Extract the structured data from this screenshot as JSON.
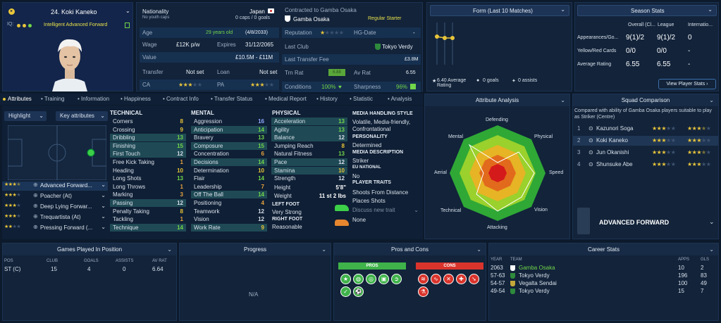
{
  "profile": {
    "iq_label": "IQ:",
    "name": "24. Koki Kaneko",
    "role": "Intelligent Advanced Forward"
  },
  "info": {
    "nationality_label": "Nationality",
    "nationality": "Japan",
    "youth_caps": "No youth caps",
    "caps": "0 caps / 0 goals",
    "age_label": "Age",
    "age": "29 years old",
    "dob": "(4/8/2033)",
    "wage_label": "Wage",
    "wage": "£12K p/w",
    "expires_label": "Expires",
    "expires": "31/12/2065",
    "value_label": "Value",
    "value": "£10.5M - £11M",
    "transfer_label": "Transfer",
    "transfer": "Not set",
    "loan_label": "Loan",
    "loan": "Not set",
    "ca_label": "CA",
    "pa_label": "PA",
    "contract_to": "Contracted to Gamba Osaka",
    "club": "Gamba Osaka",
    "squad_status": "Regular Starter",
    "reputation_label": "Reputation",
    "hg_label": "HG-Date",
    "hg_value": "-",
    "last_club_label": "Last Club",
    "last_club": "Tokyo Verdy",
    "fee_label": "Last Transfer Fee",
    "fee": "£3.8M",
    "trn_label": "Trn Rat",
    "trn_value": "6.88",
    "avrat_label": "Av Rat",
    "avrat": "6.55",
    "conditions_label": "Conditions",
    "conditions": "100%",
    "sharpness_label": "Sharpness",
    "sharpness": "96%"
  },
  "form": {
    "title": "Form (Last 10 Matches)",
    "avg": "6.40 Average Rating",
    "goals": "0 goals",
    "assists": "0 assists"
  },
  "season": {
    "title": "Season Stats",
    "cols": [
      "Overall (Cl...",
      "League",
      "Internatio..."
    ],
    "rows": [
      {
        "label": "Appearances/Go...",
        "v": [
          "9(1)/2",
          "9(1)/2",
          "0"
        ]
      },
      {
        "label": "Yellow/Red Cards",
        "v": [
          "0/0",
          "0/0",
          "-"
        ]
      },
      {
        "label": "Average Rating",
        "v": [
          "6.55",
          "6.55",
          "-"
        ]
      }
    ],
    "button": "View Player Stats"
  },
  "tabs": [
    "Attributes",
    "Training",
    "Information",
    "Happiness",
    "Contract Info",
    "Transfer Status",
    "Medical Report",
    "History",
    "Statistic",
    "Analysis"
  ],
  "pitch": {
    "highlight": "Highlight",
    "key_attr": "Key attributes"
  },
  "roles": [
    "Advanced Forward...",
    "Poacher (At)",
    "Deep Lying Forwar...",
    "Trequartista (At)",
    "Pressing Forward (..."
  ],
  "technical": {
    "title": "TECHNICAL",
    "items": [
      [
        "Corners",
        "8"
      ],
      [
        "Crossing",
        "9"
      ],
      [
        "Dribbling",
        "13"
      ],
      [
        "Finishing",
        "15"
      ],
      [
        "First Touch",
        "12"
      ],
      [
        "Free Kick Taking",
        "1"
      ],
      [
        "Heading",
        "10"
      ],
      [
        "Long Shots",
        "13"
      ],
      [
        "Long Throws",
        "1"
      ],
      [
        "Marking",
        "3"
      ],
      [
        "Passing",
        "12"
      ],
      [
        "Penalty Taking",
        "8"
      ],
      [
        "Tackling",
        "1"
      ],
      [
        "Technique",
        "14"
      ]
    ]
  },
  "mental": {
    "title": "MENTAL",
    "items": [
      [
        "Aggression",
        "16"
      ],
      [
        "Anticipation",
        "14"
      ],
      [
        "Bravery",
        "13"
      ],
      [
        "Composure",
        "15"
      ],
      [
        "Concentration",
        "6"
      ],
      [
        "Decisions",
        "14"
      ],
      [
        "Determination",
        "10"
      ],
      [
        "Flair",
        "14"
      ],
      [
        "Leadership",
        "7"
      ],
      [
        "Off The Ball",
        "14"
      ],
      [
        "Positioning",
        "4"
      ],
      [
        "Teamwork",
        "12"
      ],
      [
        "Vision",
        "12"
      ],
      [
        "Work Rate",
        "9"
      ]
    ]
  },
  "physical": {
    "title": "PHYSICAL",
    "items": [
      [
        "Acceleration",
        "13"
      ],
      [
        "Agility",
        "13"
      ],
      [
        "Balance",
        "12"
      ],
      [
        "Jumping Reach",
        "8"
      ],
      [
        "Natural Fitness",
        "13"
      ],
      [
        "Pace",
        "12"
      ],
      [
        "Stamina",
        "10"
      ],
      [
        "Strength",
        "12"
      ]
    ],
    "height_label": "Height",
    "height": "5'8\"",
    "weight_label": "Weight",
    "weight": "11 st 2 lbs",
    "left_foot_label": "LEFT FOOT",
    "left_foot": "Very Strong",
    "right_foot_label": "RIGHT FOOT",
    "right_foot": "Reasonable"
  },
  "media": {
    "mh_title": "MEDIA HANDLING STYLE",
    "mh": "Volatile, Media-friendly, Confrontational",
    "pers_title": "PERSONALITY",
    "pers": "Determined",
    "md_title": "MEDIA DESCRIPTION",
    "md": "Striker",
    "eu_title": "EU NATIONAL",
    "eu": "No",
    "traits_title": "PLAYER TRAITS",
    "traits": [
      "Shoots From Distance",
      "Places Shots"
    ],
    "discuss": "Discuss new trait",
    "none": "None"
  },
  "analysis": {
    "title": "Attribute Analysis",
    "axes": [
      "Defending",
      "Physical",
      "Speed",
      "Vision",
      "Attacking",
      "Technical",
      "Aerial",
      "Mental"
    ]
  },
  "squad": {
    "title": "Squad Comparison",
    "desc": "Compared with ability of Gamba Osaka players suitable to play as Striker (Centre)",
    "players": [
      [
        "1",
        "Kazunori Soga"
      ],
      [
        "2",
        "Koki Kaneko"
      ],
      [
        "3",
        "Jun Okanishi"
      ],
      [
        "4",
        "Shunsuke Abe"
      ]
    ],
    "role": "ADVANCED FORWARD"
  },
  "games": {
    "title": "Games Played In Position",
    "cols": [
      "POS",
      "CLUB",
      "GOALS",
      "ASSISTS",
      "AV RAT"
    ],
    "row": [
      "ST (C)",
      "15",
      "4",
      "0",
      "6.64"
    ]
  },
  "progress": {
    "title": "Progress",
    "na": "N/A"
  },
  "proscons": {
    "title": "Pros and Cons",
    "pros": "PROS",
    "cons": "CONS"
  },
  "career": {
    "title": "Career Stats",
    "cols": [
      "YEAR",
      "TEAM",
      "APPS",
      "GLS"
    ],
    "rows": [
      [
        "2063",
        "Gamba Osaka",
        "10",
        "2"
      ],
      [
        "57-63",
        "Tokyo Verdy",
        "196",
        "83"
      ],
      [
        "54-57",
        "Vegalta Sendai",
        "100",
        "49"
      ],
      [
        "49-54",
        "Tokyo Verdy",
        "15",
        "7"
      ]
    ]
  }
}
